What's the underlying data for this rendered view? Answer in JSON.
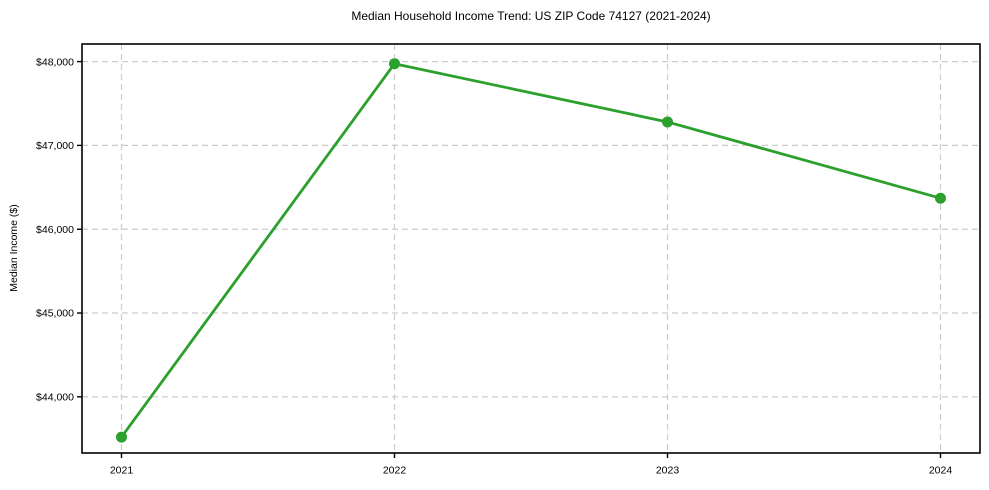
{
  "chart_data": {
    "type": "line",
    "title": "Median Household Income Trend: US ZIP Code 74127 (2021-2024)",
    "xlabel": "",
    "ylabel": "Median Income ($)",
    "x": [
      "2021",
      "2022",
      "2023",
      "2024"
    ],
    "series": [
      {
        "name": "Median Household Income",
        "values": [
          43520,
          47975,
          47280,
          46370
        ]
      }
    ],
    "yticks": [
      44000,
      45000,
      46000,
      47000,
      48000
    ],
    "ytick_format": "$#,##0",
    "ylim": [
      43330,
      48210
    ],
    "grid": true,
    "grid_style": "dashed",
    "legend": false,
    "line_color": "#2ca02c",
    "marker": "circle",
    "background_color": "#ffffff",
    "grid_color": "#cccccc",
    "spine_color": "#000000"
  }
}
